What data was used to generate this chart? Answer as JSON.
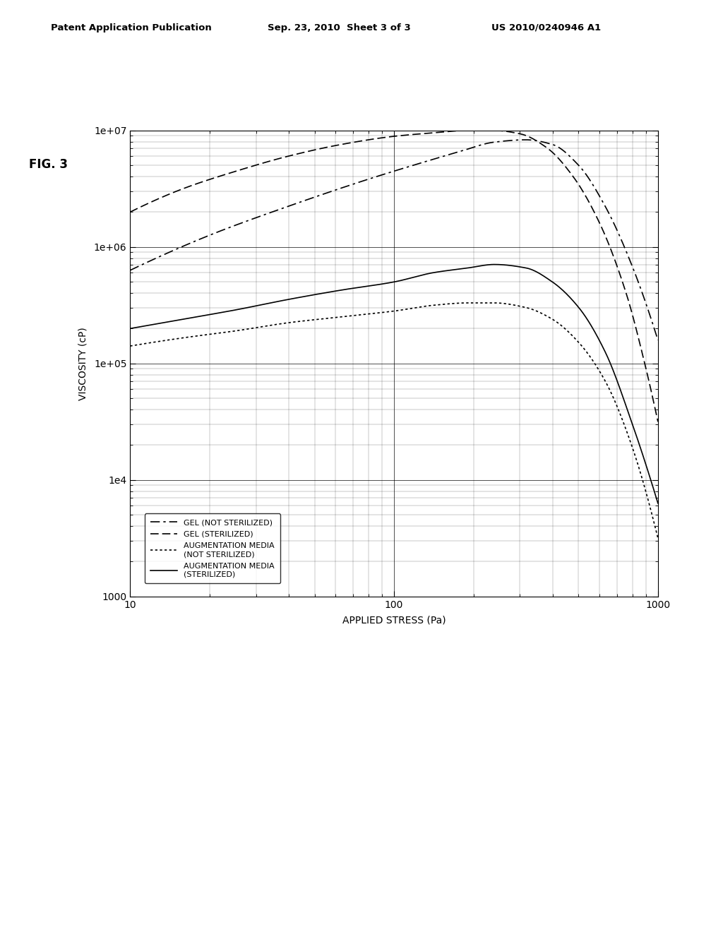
{
  "title_header_left": "Patent Application Publication",
  "title_header_mid": "Sep. 23, 2010  Sheet 3 of 3",
  "title_header_right": "US 2010/0240946 A1",
  "fig_label": "FIG. 3",
  "xlabel": "APPLIED STRESS (Pa)",
  "ylabel": "VISCOSITY (cP)",
  "xlim_log": [
    1,
    3
  ],
  "ylim_log": [
    3,
    7
  ],
  "legend_entries": [
    "GEL (NOT STERILIZED)",
    "GEL (STERILIZED)",
    "AUGMENTATION MEDIA\n(NOT STERILIZED)",
    "AUGMENTATION MEDIA\n(STERILIZED)"
  ],
  "line_color": "black",
  "background_color": "white",
  "gel_not_ster_points": [
    [
      1.0,
      5.8
    ],
    [
      1.3,
      6.1
    ],
    [
      1.6,
      6.35
    ],
    [
      1.9,
      6.58
    ],
    [
      2.1,
      6.72
    ],
    [
      2.25,
      6.82
    ],
    [
      2.38,
      6.9
    ],
    [
      2.5,
      6.92
    ],
    [
      2.6,
      6.88
    ],
    [
      2.7,
      6.7
    ],
    [
      2.8,
      6.35
    ],
    [
      2.9,
      5.85
    ],
    [
      3.0,
      5.2
    ]
  ],
  "gel_ster_points": [
    [
      1.0,
      6.3
    ],
    [
      1.2,
      6.5
    ],
    [
      1.4,
      6.65
    ],
    [
      1.6,
      6.78
    ],
    [
      1.8,
      6.88
    ],
    [
      2.0,
      6.95
    ],
    [
      2.15,
      6.98
    ],
    [
      2.28,
      7.0
    ],
    [
      2.38,
      7.0
    ],
    [
      2.48,
      6.97
    ],
    [
      2.58,
      6.85
    ],
    [
      2.68,
      6.6
    ],
    [
      2.78,
      6.2
    ],
    [
      2.88,
      5.6
    ],
    [
      2.95,
      5.0
    ],
    [
      3.0,
      4.5
    ]
  ],
  "aug_not_ster_points": [
    [
      1.0,
      5.15
    ],
    [
      1.2,
      5.22
    ],
    [
      1.4,
      5.28
    ],
    [
      1.6,
      5.35
    ],
    [
      1.8,
      5.4
    ],
    [
      2.0,
      5.45
    ],
    [
      2.15,
      5.5
    ],
    [
      2.28,
      5.52
    ],
    [
      2.38,
      5.52
    ],
    [
      2.5,
      5.48
    ],
    [
      2.6,
      5.38
    ],
    [
      2.7,
      5.18
    ],
    [
      2.8,
      4.85
    ],
    [
      2.9,
      4.3
    ],
    [
      3.0,
      3.5
    ]
  ],
  "aug_ster_points": [
    [
      1.0,
      5.3
    ],
    [
      1.2,
      5.38
    ],
    [
      1.4,
      5.46
    ],
    [
      1.6,
      5.55
    ],
    [
      1.8,
      5.63
    ],
    [
      2.0,
      5.7
    ],
    [
      2.15,
      5.78
    ],
    [
      2.28,
      5.82
    ],
    [
      2.38,
      5.85
    ],
    [
      2.5,
      5.82
    ],
    [
      2.6,
      5.7
    ],
    [
      2.7,
      5.48
    ],
    [
      2.8,
      5.1
    ],
    [
      2.9,
      4.5
    ],
    [
      3.0,
      3.8
    ]
  ]
}
